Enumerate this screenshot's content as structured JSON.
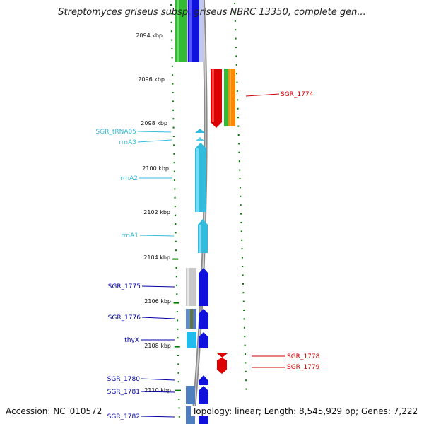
{
  "title": "Streptomyces griseus subsp. griseus NBRC 13350, complete gen...",
  "footer": {
    "accession": "Accession: NC_010572",
    "summary": "Topology: linear; Length: 8,545,929 bp; Genes: 7,222"
  },
  "colors": {
    "red_label": "#d00000",
    "cyan_label": "#33bbdd",
    "blue_label": "#0000aa",
    "tick_green": "#007a00",
    "backbone": "#888888"
  },
  "axis": {
    "ticks": [
      "2094 kbp",
      "2096 kbp",
      "2098 kbp",
      "2100 kbp",
      "2102 kbp",
      "2104 kbp",
      "2106 kbp",
      "2108 kbp",
      "2110 kbp"
    ]
  },
  "features": {
    "red_labels": [
      "SGR_1774",
      "SGR_1778",
      "SGR_1779"
    ],
    "cyan_labels": [
      "SGR_tRNA05",
      "rrnA3",
      "rrnA2",
      "rrnA1"
    ],
    "blue_labels": [
      "SGR_1775",
      "SGR_1776",
      "thyX",
      "SGR_1780",
      "SGR_1781",
      "SGR_1782"
    ]
  }
}
